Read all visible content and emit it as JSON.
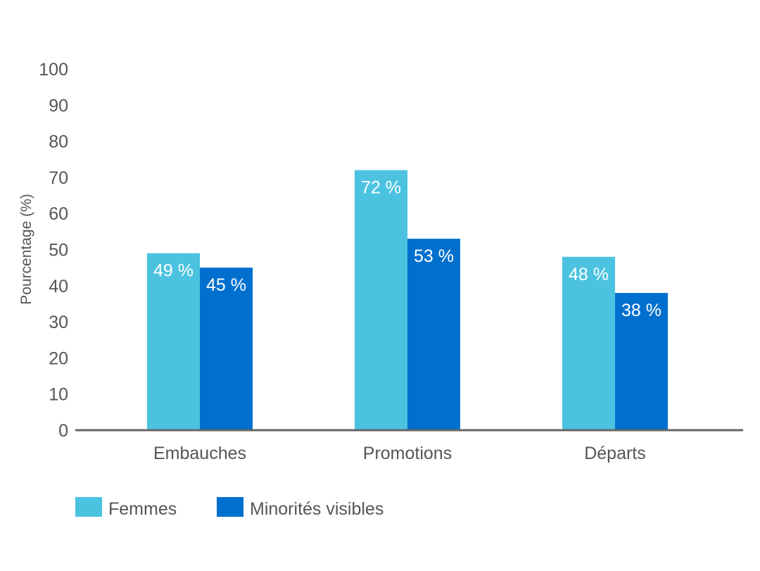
{
  "chart_data": {
    "type": "bar",
    "title": "",
    "xlabel": "",
    "ylabel": "Pourcentage (%)",
    "ylim": [
      0,
      100
    ],
    "yticks": [
      0,
      10,
      20,
      30,
      40,
      50,
      60,
      70,
      80,
      90,
      100
    ],
    "ytick_labels": [
      "0",
      "10",
      "20",
      "30",
      "40",
      "50",
      "60",
      "70",
      "80",
      "90",
      "100"
    ],
    "grid": false,
    "categories": [
      "Embauches",
      "Promotions",
      "Départs"
    ],
    "series": [
      {
        "name": "Femmes",
        "color": "#4BC3E0",
        "values": [
          49,
          72,
          48
        ],
        "labels": [
          "49 %",
          "72 %",
          "48 %"
        ]
      },
      {
        "name": "Minorités visibles",
        "color": "#0070CE",
        "values": [
          45,
          53,
          38
        ],
        "labels": [
          "45 %",
          "53 %",
          "38 %"
        ]
      }
    ],
    "legend_position": "bottom-left",
    "axis_color": "#666666"
  }
}
